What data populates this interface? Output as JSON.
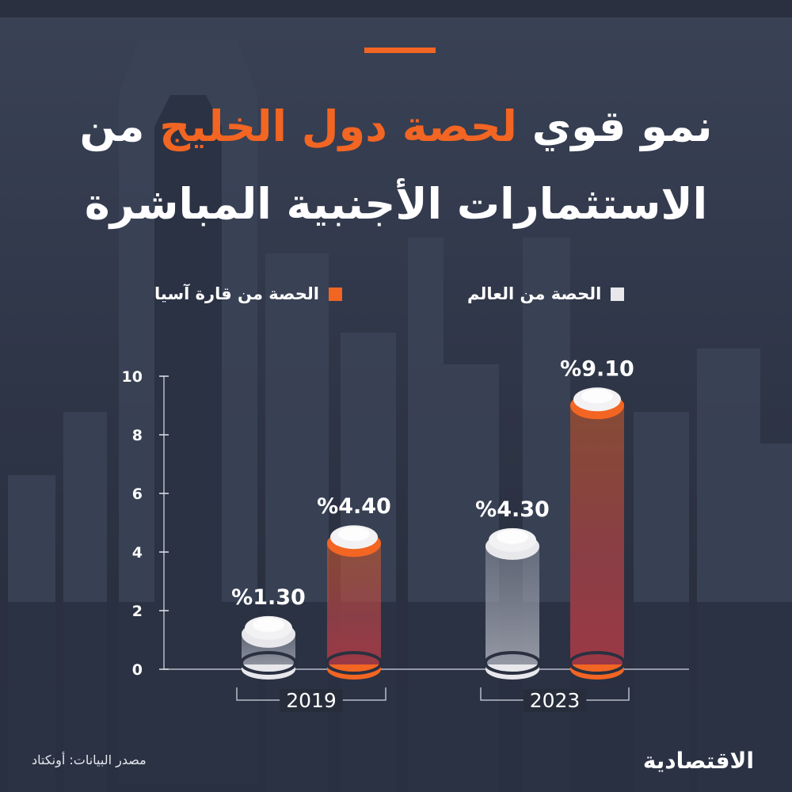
{
  "title": {
    "line1_pre": "نمو قوي",
    "line1_accent": "لحصة دول الخليج",
    "line1_post": "من",
    "line2": "الاستثمارات الأجنبية المباشرة"
  },
  "colors": {
    "accent": "#f26522",
    "world_swatch": "#e8e8ec",
    "axis": "#b7bcc8",
    "background": "#2e3547"
  },
  "source": "مصدر البيانات: أونكتاد",
  "logo": "الاقتصادية",
  "chart_data": {
    "type": "bar",
    "categories": [
      "2019",
      "2023"
    ],
    "series": [
      {
        "name": "الحصة من العالم",
        "values": [
          1.3,
          4.3
        ],
        "labels": [
          "%1.30",
          "%4.30"
        ],
        "color": "#e8e8ec"
      },
      {
        "name": "الحصة من قارة آسيا",
        "values": [
          4.4,
          9.1
        ],
        "labels": [
          "%4.40",
          "%9.10"
        ],
        "color": "#f26522"
      }
    ],
    "yticks": [
      0,
      2,
      4,
      6,
      8,
      10
    ],
    "ylim": [
      0,
      10
    ],
    "legend_position": "top",
    "grid": false
  }
}
